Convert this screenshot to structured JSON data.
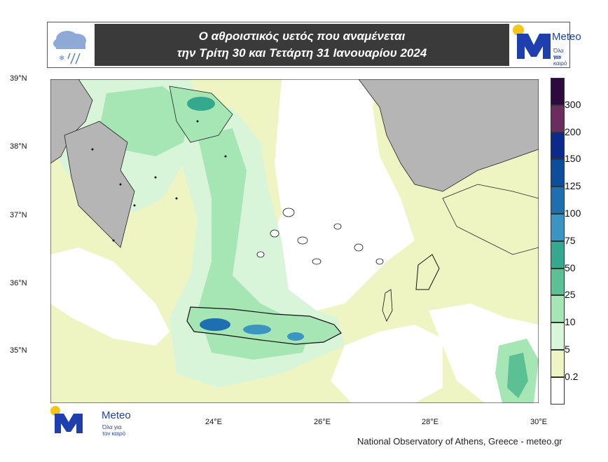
{
  "header": {
    "title_line1": "Ο αθροιστικός υετός που αναμένεται",
    "title_line2": "την Τρίτη 30 και Τετάρτη 31 Ιανουαρίου 2024",
    "weather_icon": "rain-cloud-icon",
    "logo_name": "Meteo",
    "logo_tagline_1": "Όλα για",
    "logo_tagline_2": "τον καιρό"
  },
  "axes": {
    "lat_labels": [
      "39°N",
      "38°N",
      "37°N",
      "36°N",
      "35°N"
    ],
    "lon_labels": [
      "24°E",
      "26°E",
      "28°E",
      "30°E"
    ]
  },
  "colorbar": {
    "labels": [
      "300",
      "200",
      "150",
      "125",
      "100",
      "75",
      "50",
      "25",
      "10",
      "5",
      "0.2"
    ],
    "colors": [
      "#2d0a3e",
      "#6a2d5e",
      "#0b2a8c",
      "#0d4e9c",
      "#1e6fb0",
      "#3a95c2",
      "#35a98d",
      "#5cc095",
      "#a6e6b5",
      "#d8f5d9",
      "#eef5c2",
      "#ffffff"
    ]
  },
  "footer": {
    "logo_name": "Meteo",
    "logo_tagline_1": "Όλα για",
    "logo_tagline_2": "τον καιρό",
    "credit": "National Observatory of Athens, Greece - meteo.gr"
  },
  "colors": {
    "land": "#b5b5b5",
    "sea_light": "#eef5c2",
    "brand_blue": "#1f3fae",
    "brand_yellow": "#f5c518"
  }
}
